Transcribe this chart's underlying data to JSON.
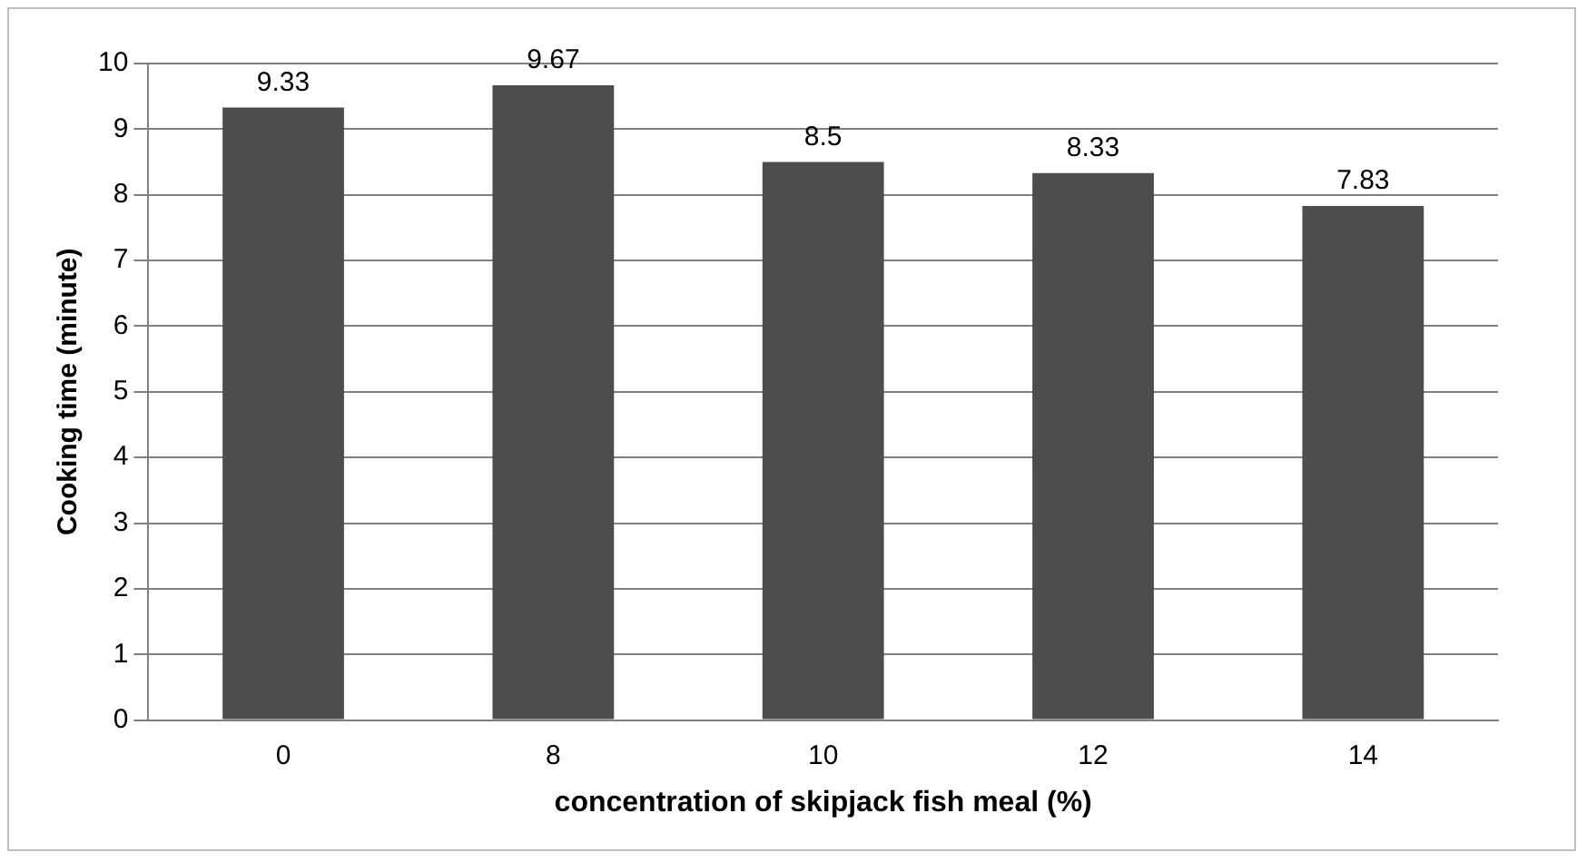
{
  "chart_data": {
    "type": "bar",
    "xlabel": "concentration of skipjack fish meal (%)",
    "ylabel": "Cooking time (minute)",
    "categories": [
      "0",
      "8",
      "10",
      "12",
      "14"
    ],
    "values": [
      9.33,
      9.67,
      8.5,
      8.33,
      7.83
    ],
    "color": "#4d4d4d",
    "ylim": [
      0,
      10
    ],
    "yticks": [
      0,
      1,
      2,
      3,
      4,
      5,
      6,
      7,
      8,
      9,
      10
    ],
    "grid": "y",
    "data_labels": true
  }
}
